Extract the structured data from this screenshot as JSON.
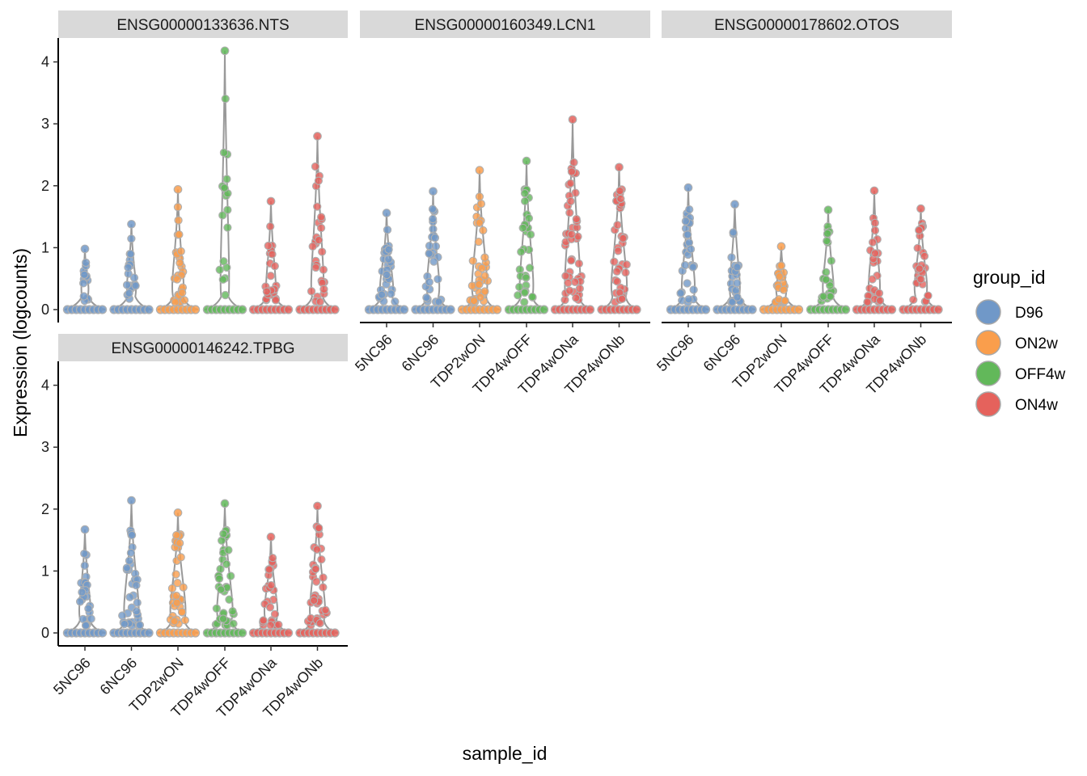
{
  "chart_data": {
    "type": "violin",
    "xlabel": "sample_id",
    "ylabel": "Expression (logcounts)",
    "ylim": [
      0,
      4.4
    ],
    "yticks": [
      0,
      1,
      2,
      3,
      4
    ],
    "samples": [
      "5NC96",
      "6NC96",
      "TDP2wON",
      "TDP4wOFF",
      "TDP4wONa",
      "TDP4wONb"
    ],
    "sample_groups": [
      "D96",
      "D96",
      "ON2w",
      "OFF4w",
      "ON4w",
      "ON4w"
    ],
    "legend": {
      "title": "group_id",
      "items": [
        {
          "label": "D96",
          "color": "#7098c8"
        },
        {
          "label": "ON2w",
          "color": "#fa9e4c"
        },
        {
          "label": "OFF4w",
          "color": "#62b85a"
        },
        {
          "label": "ON4w",
          "color": "#e5625c"
        }
      ]
    },
    "panels": [
      {
        "title": "ENSG00000133636.NTS",
        "max": [
          0.98,
          1.38,
          1.94,
          4.18,
          1.75,
          2.8
        ],
        "spread": [
          0.45,
          0.8,
          1.2,
          0.7,
          0.9,
          1.4
        ]
      },
      {
        "title": "ENSG00000160349.LCN1",
        "max": [
          1.56,
          1.91,
          2.25,
          2.4,
          3.07,
          2.3
        ],
        "spread": [
          1.5,
          1.4,
          1.9,
          1.6,
          2.5,
          2.1
        ]
      },
      {
        "title": "ENSG00000178602.OTOS",
        "max": [
          1.97,
          1.7,
          1.02,
          1.61,
          1.92,
          1.63
        ],
        "spread": [
          1.5,
          1.0,
          1.0,
          1.1,
          1.2,
          1.4
        ]
      },
      {
        "title": "ENSG00000146242.TPBG",
        "max": [
          1.67,
          2.14,
          1.94,
          2.09,
          1.55,
          2.05
        ],
        "spread": [
          1.2,
          1.8,
          1.9,
          2.0,
          1.5,
          1.9
        ]
      }
    ]
  }
}
